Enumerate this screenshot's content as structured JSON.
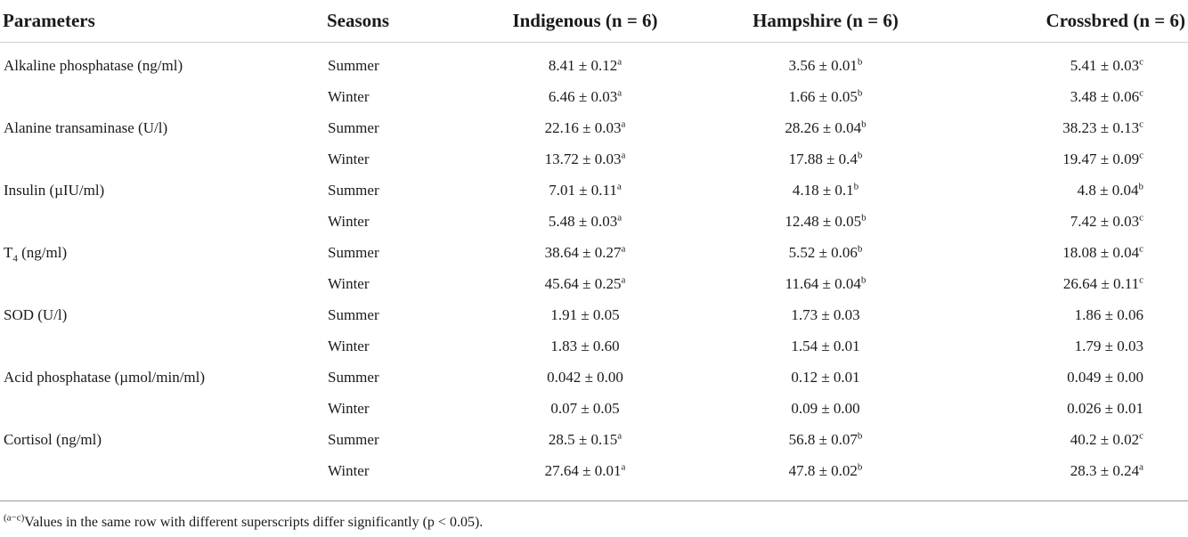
{
  "table": {
    "headers": {
      "parameters": "Parameters",
      "seasons": "Seasons",
      "indigenous": "Indigenous (n = 6)",
      "hampshire": "Hampshire (n = 6)",
      "crossbred": "Crossbred (n = 6)"
    },
    "rows": [
      {
        "param": "Alkaline phosphatase (ng/ml)",
        "param_sub": "",
        "param_tail": "",
        "season": "Summer",
        "ind": "8.41 ± 0.12",
        "ind_sup": "a",
        "ham": "3.56 ± 0.01",
        "ham_sup": "b",
        "cro": "5.41 ± 0.03",
        "cro_sup": "c"
      },
      {
        "param": "",
        "param_sub": "",
        "param_tail": "",
        "season": "Winter",
        "ind": "6.46 ± 0.03",
        "ind_sup": "a",
        "ham": "1.66 ± 0.05",
        "ham_sup": "b",
        "cro": "3.48 ± 0.06",
        "cro_sup": "c"
      },
      {
        "param": "Alanine transaminase (U/l)",
        "param_sub": "",
        "param_tail": "",
        "season": "Summer",
        "ind": "22.16 ± 0.03",
        "ind_sup": "a",
        "ham": "28.26 ± 0.04",
        "ham_sup": "b",
        "cro": "38.23 ± 0.13",
        "cro_sup": "c"
      },
      {
        "param": "",
        "param_sub": "",
        "param_tail": "",
        "season": "Winter",
        "ind": "13.72 ± 0.03",
        "ind_sup": "a",
        "ham": "17.88 ± 0.4",
        "ham_sup": "b",
        "cro": "19.47 ± 0.09",
        "cro_sup": "c"
      },
      {
        "param": "Insulin (µIU/ml)",
        "param_sub": "",
        "param_tail": "",
        "season": "Summer",
        "ind": "7.01 ± 0.11",
        "ind_sup": "a",
        "ham": "4.18 ± 0.1",
        "ham_sup": "b",
        "cro": "4.8 ± 0.04",
        "cro_sup": "b"
      },
      {
        "param": "",
        "param_sub": "",
        "param_tail": "",
        "season": "Winter",
        "ind": "5.48 ± 0.03",
        "ind_sup": "a",
        "ham": "12.48 ± 0.05",
        "ham_sup": "b",
        "cro": "7.42 ± 0.03",
        "cro_sup": "c"
      },
      {
        "param": "T",
        "param_sub": "4",
        "param_tail": " (ng/ml)",
        "season": "Summer",
        "ind": "38.64 ± 0.27",
        "ind_sup": "a",
        "ham": "5.52 ± 0.06",
        "ham_sup": "b",
        "cro": "18.08 ± 0.04",
        "cro_sup": "c"
      },
      {
        "param": "",
        "param_sub": "",
        "param_tail": "",
        "season": "Winter",
        "ind": "45.64 ± 0.25",
        "ind_sup": "a",
        "ham": "11.64 ± 0.04",
        "ham_sup": "b",
        "cro": "26.64 ± 0.11",
        "cro_sup": "c"
      },
      {
        "param": "SOD (U/l)",
        "param_sub": "",
        "param_tail": "",
        "season": "Summer",
        "ind": "1.91 ± 0.05",
        "ind_sup": "",
        "ham": "1.73 ± 0.03",
        "ham_sup": "",
        "cro": "1.86 ± 0.06",
        "cro_sup": ""
      },
      {
        "param": "",
        "param_sub": "",
        "param_tail": "",
        "season": "Winter",
        "ind": "1.83 ± 0.60",
        "ind_sup": "",
        "ham": "1.54 ± 0.01",
        "ham_sup": "",
        "cro": "1.79 ± 0.03",
        "cro_sup": ""
      },
      {
        "param": "Acid phosphatase (µmol/min/ml)",
        "param_sub": "",
        "param_tail": "",
        "season": "Summer",
        "ind": "0.042 ± 0.00",
        "ind_sup": "",
        "ham": "0.12 ± 0.01",
        "ham_sup": "",
        "cro": "0.049 ± 0.00",
        "cro_sup": ""
      },
      {
        "param": "",
        "param_sub": "",
        "param_tail": "",
        "season": "Winter",
        "ind": "0.07 ± 0.05",
        "ind_sup": "",
        "ham": "0.09 ± 0.00",
        "ham_sup": "",
        "cro": "0.026 ± 0.01",
        "cro_sup": ""
      },
      {
        "param": "Cortisol (ng/ml)",
        "param_sub": "",
        "param_tail": "",
        "season": "Summer",
        "ind": "28.5 ± 0.15",
        "ind_sup": "a",
        "ham": "56.8 ± 0.07",
        "ham_sup": "b",
        "cro": "40.2 ± 0.02",
        "cro_sup": "c"
      },
      {
        "param": "",
        "param_sub": "",
        "param_tail": "",
        "season": "Winter",
        "ind": "27.64 ± 0.01",
        "ind_sup": "a",
        "ham": "47.8 ± 0.02",
        "ham_sup": "b",
        "cro": "28.3 ± 0.24",
        "cro_sup": "a"
      }
    ]
  },
  "footnote": {
    "sup": "(a−c)",
    "text": "Values in the same row with different superscripts differ significantly (p < 0.05)."
  }
}
